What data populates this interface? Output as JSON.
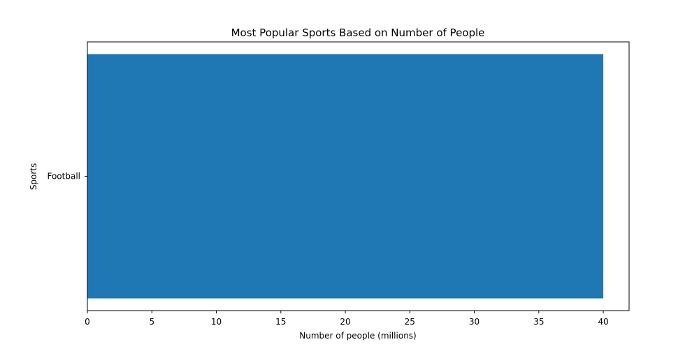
{
  "chart_data": {
    "type": "bar",
    "orientation": "horizontal",
    "title": "Most Popular Sports Based on Number of People",
    "xlabel": "Number of people (millions)",
    "ylabel": "Sports",
    "categories": [
      "Football"
    ],
    "values": [
      40
    ],
    "xlim": [
      0,
      42
    ],
    "xticks": [
      0,
      5,
      10,
      15,
      20,
      25,
      30,
      35,
      40
    ],
    "grid": false,
    "bar_color": "#1f77b4"
  }
}
